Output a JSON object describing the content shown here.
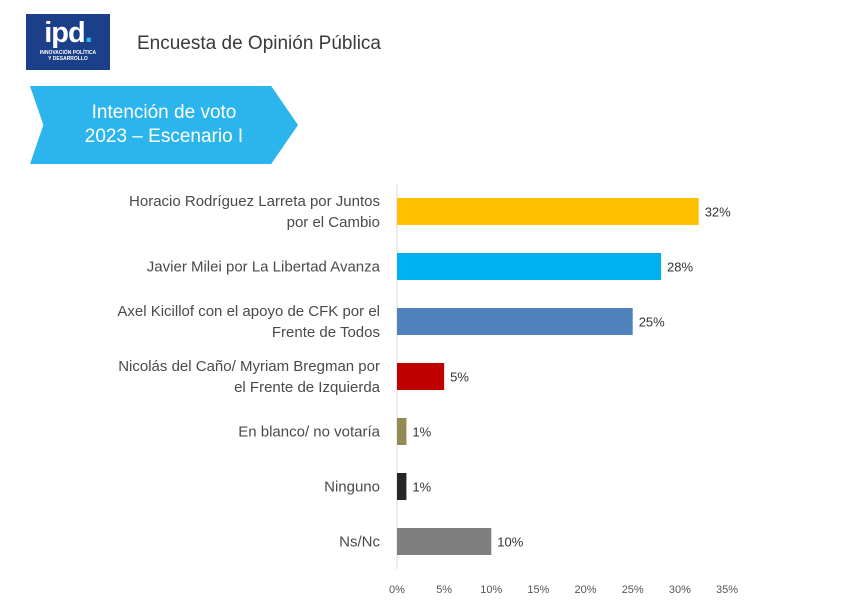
{
  "header": {
    "logo_text": "ipd",
    "logo_tagline": "INNOVACIÓN POLÍTICA\nY DESARROLLO",
    "title": "Encuesta de Opinión Pública",
    "brand_color": "#1c3f8a"
  },
  "banner": {
    "line1": "Intención de voto",
    "line2": "2023 – Escenario I",
    "color": "#2bb5ec"
  },
  "chart_data": {
    "type": "bar",
    "orientation": "horizontal",
    "categories": [
      [
        "Horacio Rodríguez Larreta por Juntos",
        "por el Cambio"
      ],
      [
        "Javier Milei por La Libertad Avanza"
      ],
      [
        "Axel Kicillof con el apoyo de CFK por el",
        "Frente de Todos"
      ],
      [
        "Nicolás del Caño/ Myriam Bregman por",
        "el Frente de Izquierda"
      ],
      [
        "En blanco/ no votaría"
      ],
      [
        "Ninguno"
      ],
      [
        "Ns/Nc"
      ]
    ],
    "values": [
      32,
      28,
      25,
      5,
      1,
      1,
      10
    ],
    "value_labels": [
      "32%",
      "28%",
      "25%",
      "5%",
      "1%",
      "1%",
      "10%"
    ],
    "colors": [
      "#ffc000",
      "#00b0f0",
      "#4f81bd",
      "#c00000",
      "#948a54",
      "#262626",
      "#7f7f7f"
    ],
    "xlim": [
      0,
      35
    ],
    "ticks": [
      0,
      5,
      10,
      15,
      20,
      25,
      30,
      35
    ],
    "tick_labels": [
      "0%",
      "5%",
      "10%",
      "15%",
      "20%",
      "25%",
      "30%",
      "35%"
    ],
    "grid": false,
    "legend": "none"
  }
}
